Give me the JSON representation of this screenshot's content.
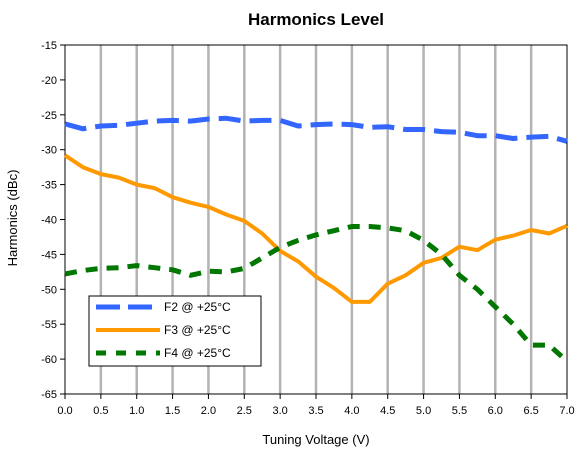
{
  "chart_data": {
    "type": "line",
    "title": "Harmonics Level",
    "xlabel": "Tuning Voltage (V)",
    "ylabel": "Harmonics (dBc)",
    "xlim": [
      0,
      7
    ],
    "ylim": [
      -65,
      -15
    ],
    "x_ticks": [
      "0.0",
      "0.5",
      "1.0",
      "1.5",
      "2.0",
      "2.5",
      "3.0",
      "3.5",
      "4.0",
      "4.5",
      "5.0",
      "5.5",
      "6.0",
      "6.5",
      "7.0"
    ],
    "y_ticks": [
      "-15",
      "-20",
      "-25",
      "-30",
      "-35",
      "-40",
      "-45",
      "-50",
      "-55",
      "-60",
      "-65"
    ],
    "grid": "vertical",
    "legend_position": "bottom-left",
    "series": [
      {
        "name": "F2 @ +25°C",
        "color": "#3366ff",
        "style": "dashed",
        "x": [
          0,
          0.25,
          0.5,
          0.75,
          1.0,
          1.25,
          1.5,
          1.75,
          2.0,
          2.25,
          2.5,
          2.75,
          3.0,
          3.25,
          3.5,
          3.75,
          4.0,
          4.25,
          4.5,
          4.75,
          5.0,
          5.25,
          5.5,
          5.75,
          6.0,
          6.25,
          6.5,
          6.75,
          7.0
        ],
        "values": [
          -26.3,
          -27.0,
          -26.6,
          -26.5,
          -26.2,
          -25.9,
          -25.8,
          -25.9,
          -25.6,
          -25.5,
          -25.9,
          -25.8,
          -25.8,
          -26.6,
          -26.4,
          -26.3,
          -26.4,
          -26.8,
          -26.7,
          -27.1,
          -27.1,
          -27.4,
          -27.5,
          -28.0,
          -28.0,
          -28.4,
          -28.2,
          -28.1,
          -28.8
        ]
      },
      {
        "name": "F3 @ +25°C",
        "color": "#ff9900",
        "style": "solid",
        "x": [
          0,
          0.25,
          0.5,
          0.75,
          1.0,
          1.25,
          1.5,
          1.75,
          2.0,
          2.25,
          2.5,
          2.75,
          3.0,
          3.25,
          3.5,
          3.75,
          4.0,
          4.25,
          4.5,
          4.75,
          5.0,
          5.25,
          5.5,
          5.75,
          6.0,
          6.25,
          6.5,
          6.75,
          7.0
        ],
        "values": [
          -30.8,
          -32.5,
          -33.5,
          -34.0,
          -35.0,
          -35.5,
          -36.8,
          -37.6,
          -38.2,
          -39.3,
          -40.2,
          -42.0,
          -44.5,
          -46.0,
          -48.2,
          -49.8,
          -51.8,
          -51.8,
          -49.2,
          -48.0,
          -46.2,
          -45.5,
          -43.9,
          -44.4,
          -42.9,
          -42.3,
          -41.5,
          -42.0,
          -40.9
        ]
      },
      {
        "name": "F4 @ +25°C",
        "color": "#007700",
        "style": "dashed",
        "x": [
          0,
          0.25,
          0.5,
          0.75,
          1.0,
          1.25,
          1.5,
          1.75,
          2.0,
          2.25,
          2.5,
          2.75,
          3.0,
          3.25,
          3.5,
          3.75,
          4.0,
          4.25,
          4.5,
          4.75,
          5.0,
          5.25,
          5.5,
          5.75,
          6.0,
          6.25,
          6.5,
          6.75,
          7.0
        ],
        "values": [
          -47.8,
          -47.3,
          -47.0,
          -46.9,
          -46.6,
          -46.9,
          -47.2,
          -48.0,
          -47.4,
          -47.5,
          -47.0,
          -45.5,
          -44.0,
          -43.0,
          -42.2,
          -41.6,
          -41.0,
          -41.0,
          -41.2,
          -41.6,
          -43.0,
          -45.0,
          -48.0,
          -50.0,
          -52.5,
          -55.0,
          -58.0,
          -58.0,
          -60.3
        ]
      }
    ]
  }
}
